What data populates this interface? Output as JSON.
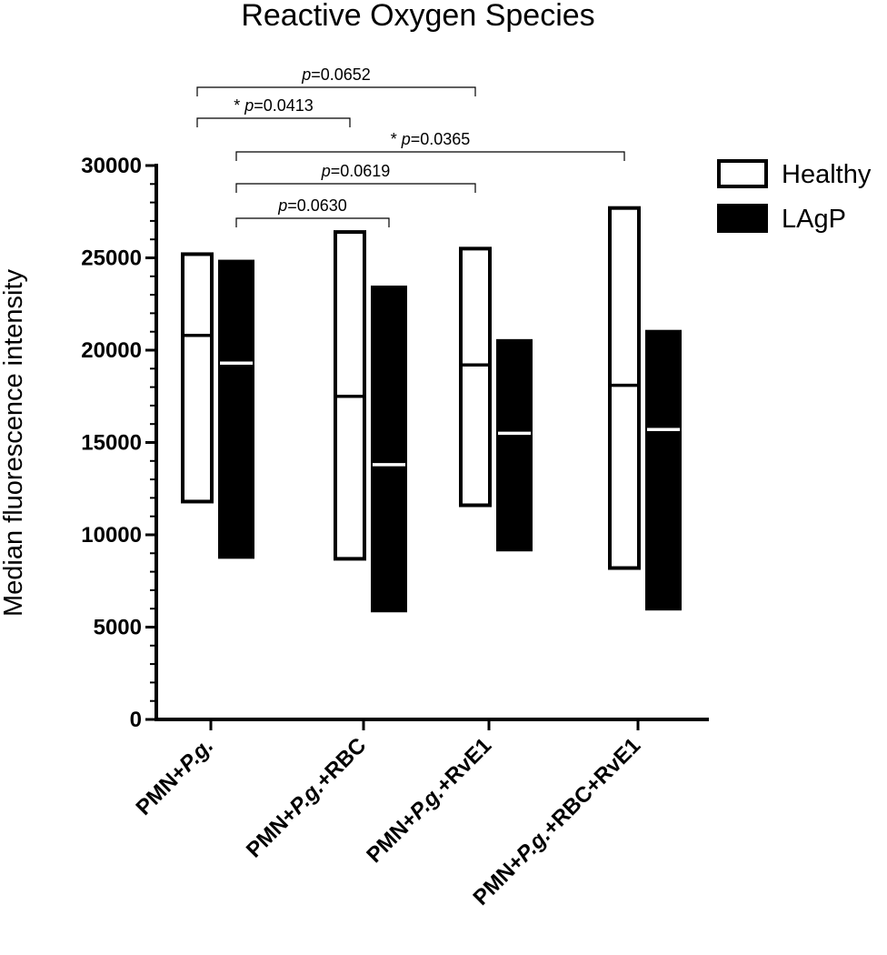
{
  "chart_data": {
    "type": "box",
    "title": "Reactive Oxygen Species",
    "ylabel": "Median fluorescence intensity",
    "xlabel": "",
    "ylim": [
      0,
      30000
    ],
    "yticks": [
      0,
      5000,
      10000,
      15000,
      20000,
      25000,
      30000
    ],
    "ytick_labels": [
      "0",
      "5000",
      "10000",
      "15000",
      "20000",
      "25000",
      "30000"
    ],
    "categories": [
      {
        "prefix": "PMN+",
        "italic": "P.g.",
        "suffix": ""
      },
      {
        "prefix": "PMN+",
        "italic": "P.g.",
        "suffix": "+RBC"
      },
      {
        "prefix": "PMN+",
        "italic": "P.g.",
        "suffix": "+RvE1"
      },
      {
        "prefix": "PMN+",
        "italic": "P.g.",
        "suffix": "+RBC+RvE1"
      }
    ],
    "legend_position": "top-right",
    "series": [
      {
        "name": "Healthy",
        "fill": "#ffffff",
        "stroke": "#000000",
        "median_color": "#000000",
        "boxes": [
          {
            "min": 11800,
            "median": 20800,
            "max": 25200
          },
          {
            "min": 8700,
            "median": 17500,
            "max": 26400
          },
          {
            "min": 11600,
            "median": 19200,
            "max": 25500
          },
          {
            "min": 8200,
            "median": 18100,
            "max": 27700
          }
        ]
      },
      {
        "name": "LAgP",
        "fill": "#000000",
        "stroke": "#000000",
        "median_color": "#ffffff",
        "boxes": [
          {
            "min": 8800,
            "median": 19300,
            "max": 24800
          },
          {
            "min": 5900,
            "median": 13800,
            "max": 23400
          },
          {
            "min": 9200,
            "median": 15500,
            "max": 20500
          },
          {
            "min": 6000,
            "median": 15700,
            "max": 21000
          }
        ]
      }
    ],
    "comparisons": [
      {
        "from": [
          0,
          0
        ],
        "to": [
          2,
          0
        ],
        "star": "",
        "label": "=0.0652"
      },
      {
        "from": [
          0,
          0
        ],
        "to": [
          1,
          0
        ],
        "star": "* ",
        "label": "=0.0413"
      },
      {
        "from": [
          0,
          1
        ],
        "to": [
          3,
          0
        ],
        "star": "* ",
        "label": "=0.0365"
      },
      {
        "from": [
          0,
          1
        ],
        "to": [
          2,
          0
        ],
        "star": "",
        "label": "=0.0619"
      },
      {
        "from": [
          0,
          1
        ],
        "to": [
          1,
          1
        ],
        "star": "",
        "label": "=0.0630"
      }
    ],
    "p_symbol": "p"
  }
}
